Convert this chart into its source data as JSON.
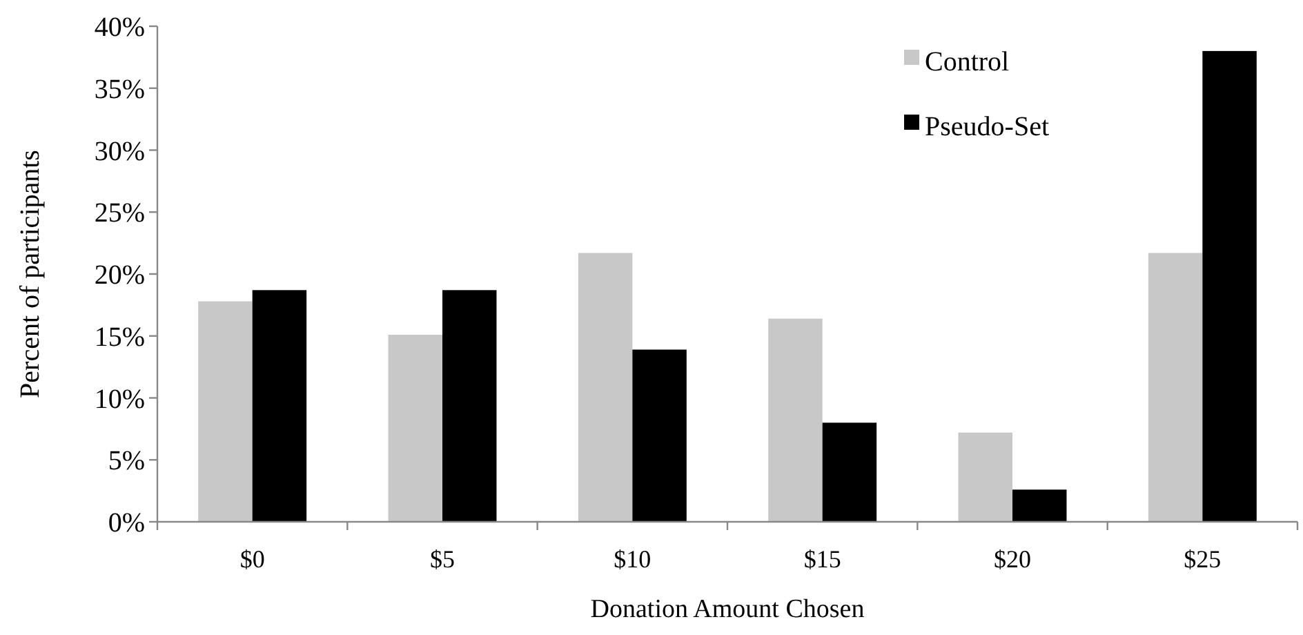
{
  "chart_data": {
    "type": "bar",
    "xlabel": "Donation Amount Chosen",
    "ylabel": "Percent of participants",
    "categories": [
      "$0",
      "$5",
      "$10",
      "$15",
      "$20",
      "$25"
    ],
    "series": [
      {
        "name": "Control",
        "color": "#c8c8c8",
        "values": [
          17.8,
          15.1,
          21.7,
          16.4,
          7.2,
          21.7
        ]
      },
      {
        "name": "Pseudo-Set",
        "color": "#000000",
        "values": [
          18.7,
          18.7,
          13.9,
          8.0,
          2.6,
          38.0
        ]
      }
    ],
    "ylim": [
      0,
      40
    ],
    "yticks": [
      {
        "value": 0,
        "label": "0%"
      },
      {
        "value": 5,
        "label": "5%"
      },
      {
        "value": 10,
        "label": "10%"
      },
      {
        "value": 15,
        "label": "15%"
      },
      {
        "value": 20,
        "label": "20%"
      },
      {
        "value": 25,
        "label": "25%"
      },
      {
        "value": 30,
        "label": "30%"
      },
      {
        "value": 35,
        "label": "35%"
      },
      {
        "value": 40,
        "label": "40%"
      }
    ],
    "grid": false,
    "legend": "top right"
  }
}
